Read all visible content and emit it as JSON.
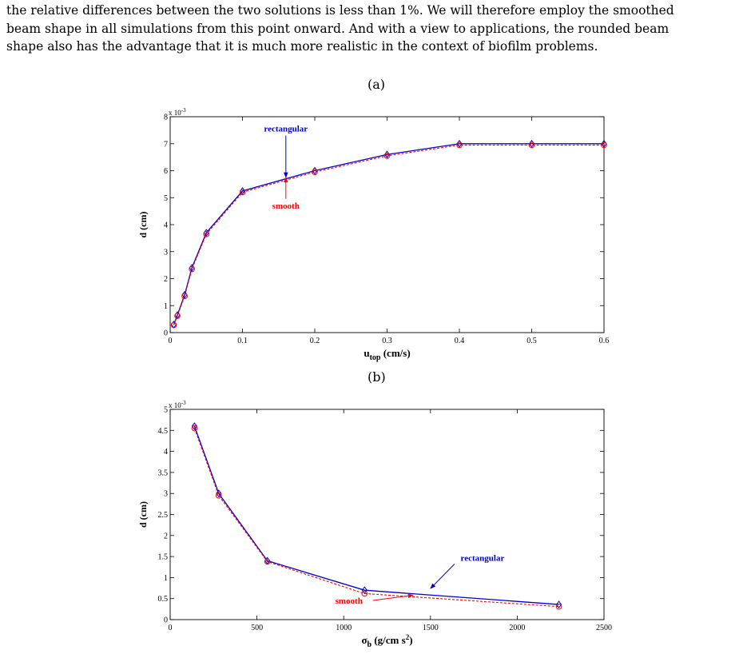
{
  "paragraph": {
    "lines": [
      "the relative differences between the two solutions is less than 1%. We will therefore employ the smoothed",
      "beam shape in all simulations from this point onward. And with a view to applications, the rounded beam",
      "shape also has the advantage that it is much more realistic in the context of biofilm problems."
    ]
  },
  "figure": {
    "panel_a_label": "(a)",
    "panel_b_label": "(b)"
  },
  "colors": {
    "rectangular": "#0000cc",
    "smooth": "#ff0000"
  },
  "chart_data": [
    {
      "type": "line",
      "panel": "(a)",
      "xlabel_main": "u",
      "xlabel_sub": "top",
      "xlabel_unit": "(cm/s)",
      "ylabel": "d (cm)",
      "y_scale_label": "x 10",
      "y_scale_exp": "-3",
      "xlim": [
        0,
        0.6
      ],
      "ylim": [
        0,
        8
      ],
      "xticks": [
        0,
        0.1,
        0.2,
        0.3,
        0.4,
        0.5,
        0.6
      ],
      "xtick_labels": [
        "0",
        "0.1",
        "0.2",
        "0.3",
        "0.4",
        "0.5",
        "0.6"
      ],
      "yticks": [
        0,
        1,
        2,
        3,
        4,
        5,
        6,
        7,
        8
      ],
      "ytick_labels": [
        "0",
        "1",
        "2",
        "3",
        "4",
        "5",
        "6",
        "7",
        "8"
      ],
      "series": [
        {
          "name": "rectangular",
          "x": [
            0.005,
            0.01,
            0.02,
            0.03,
            0.05,
            0.1,
            0.2,
            0.3,
            0.4,
            0.5,
            0.6
          ],
          "y": [
            0.3,
            0.65,
            1.4,
            2.4,
            3.7,
            5.25,
            6.0,
            6.6,
            7.0,
            7.0,
            7.0
          ]
        },
        {
          "name": "smooth",
          "x": [
            0.005,
            0.01,
            0.02,
            0.03,
            0.05,
            0.1,
            0.2,
            0.3,
            0.4,
            0.5,
            0.6
          ],
          "y": [
            0.28,
            0.62,
            1.35,
            2.35,
            3.65,
            5.2,
            5.95,
            6.55,
            6.95,
            6.95,
            6.95
          ]
        }
      ],
      "annotations": [
        {
          "text": "rectangular",
          "series": "rectangular",
          "text_x": 0.16,
          "text_y": 7.45,
          "arrow_x": 0.16,
          "arrow_y": 5.75
        },
        {
          "text": "smooth",
          "series": "smooth",
          "text_x": 0.16,
          "text_y": 4.6,
          "arrow_x": 0.16,
          "arrow_y": 5.75
        }
      ]
    },
    {
      "type": "line",
      "panel": "(b)",
      "xlabel_main": "σ",
      "xlabel_sub": "b",
      "xlabel_unit": "(g/cm s",
      "xlabel_sup": "2",
      "xlabel_close": ")",
      "ylabel": "d (cm)",
      "y_scale_label": "x 10",
      "y_scale_exp": "-3",
      "xlim": [
        0,
        2500
      ],
      "ylim": [
        0,
        5
      ],
      "xticks": [
        0,
        500,
        1000,
        1500,
        2000,
        2500
      ],
      "xtick_labels": [
        "0",
        "500",
        "1000",
        "1500",
        "2000",
        "2500"
      ],
      "yticks": [
        0,
        0.5,
        1,
        1.5,
        2,
        2.5,
        3,
        3.5,
        4,
        4.5,
        5
      ],
      "ytick_labels": [
        "0",
        "0.5",
        "1",
        "1.5",
        "2",
        "2.5",
        "3",
        "3.5",
        "4",
        "4.5",
        "5"
      ],
      "series": [
        {
          "name": "rectangular",
          "x": [
            140,
            280,
            560,
            1120,
            2240
          ],
          "y": [
            4.6,
            3.0,
            1.4,
            0.7,
            0.36
          ]
        },
        {
          "name": "smooth",
          "x": [
            140,
            280,
            560,
            1120,
            2240
          ],
          "y": [
            4.55,
            2.95,
            1.38,
            0.62,
            0.31
          ]
        }
      ],
      "annotations": [
        {
          "text": "rectangular",
          "series": "rectangular",
          "text_x": 1800,
          "text_y": 1.4,
          "arrow_x": 1500,
          "arrow_y": 0.74
        },
        {
          "text": "smooth",
          "series": "smooth",
          "text_x": 1030,
          "text_y": 0.38,
          "arrow_x": 1400,
          "arrow_y": 0.58
        }
      ]
    }
  ]
}
